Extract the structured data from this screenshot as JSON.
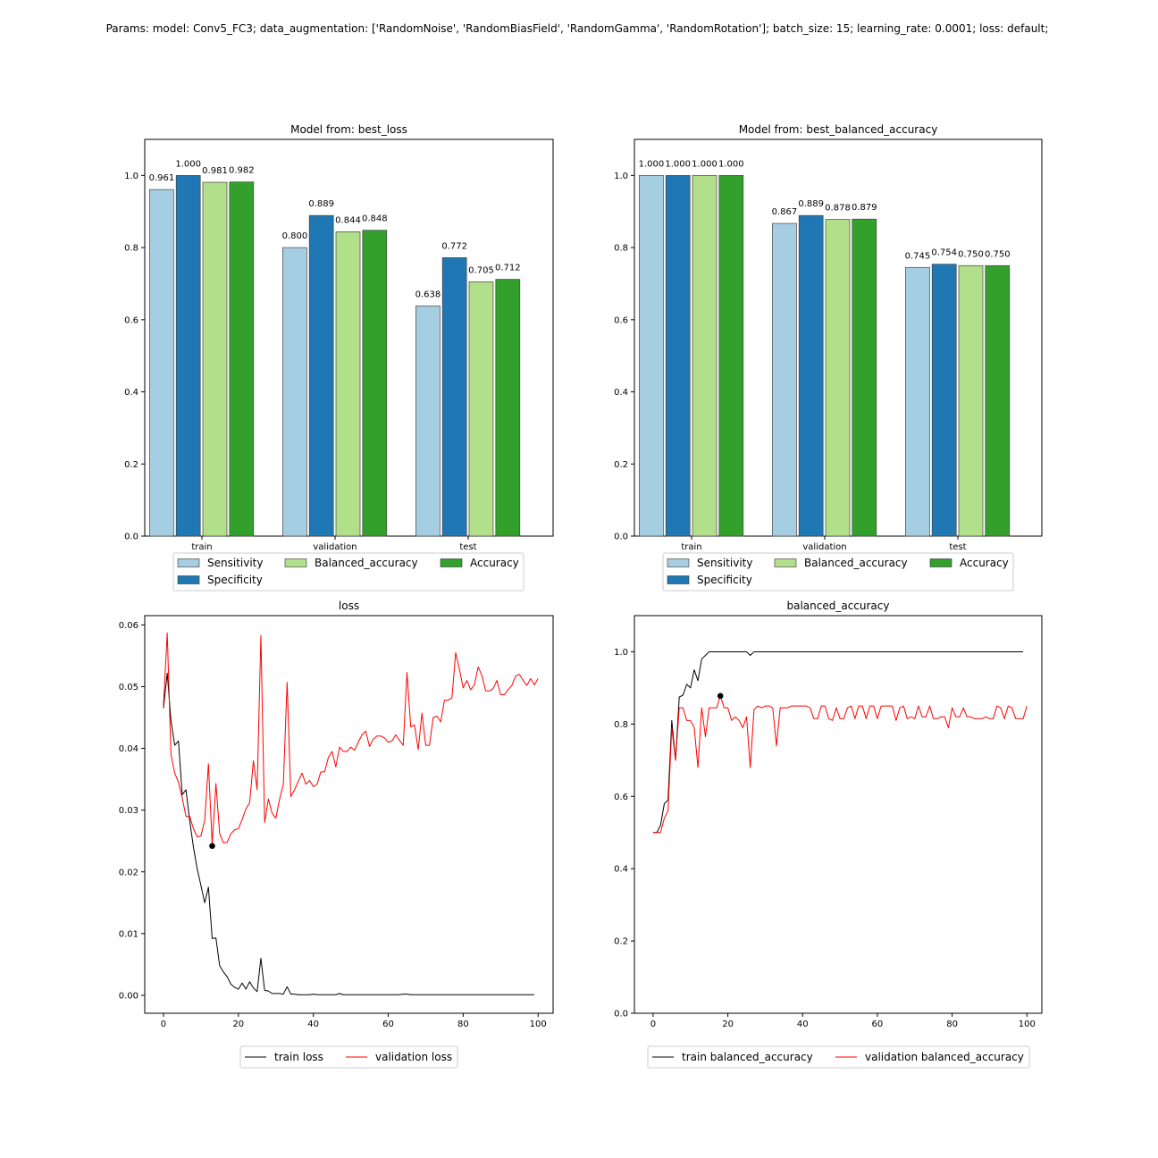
{
  "suptitle": "Params: model: Conv5_FC3; data_augmentation: ['RandomNoise', 'RandomBiasField', 'RandomGamma', 'RandomRotation']; batch_size: 15; learning_rate: 0.0001; loss: default;",
  "chart_data": [
    {
      "type": "bar",
      "title": "Model from: best_loss",
      "categories": [
        "train",
        "validation",
        "test"
      ],
      "ylim": [
        0,
        1.1
      ],
      "yticks": [
        0.0,
        0.2,
        0.4,
        0.6,
        0.8,
        1.0
      ],
      "series": [
        {
          "name": "Sensitivity",
          "color": "#a6cee3",
          "values": [
            0.961,
            0.8,
            0.638
          ]
        },
        {
          "name": "Specificity",
          "color": "#1f78b4",
          "values": [
            1.0,
            0.889,
            0.772
          ]
        },
        {
          "name": "Balanced_accuracy",
          "color": "#b2df8a",
          "values": [
            0.981,
            0.844,
            0.705
          ]
        },
        {
          "name": "Accuracy",
          "color": "#33a02c",
          "values": [
            0.982,
            0.848,
            0.712
          ]
        }
      ],
      "legend": "below"
    },
    {
      "type": "bar",
      "title": "Model from: best_balanced_accuracy",
      "categories": [
        "train",
        "validation",
        "test"
      ],
      "ylim": [
        0,
        1.1
      ],
      "yticks": [
        0.0,
        0.2,
        0.4,
        0.6,
        0.8,
        1.0
      ],
      "series": [
        {
          "name": "Sensitivity",
          "color": "#a6cee3",
          "values": [
            1.0,
            0.867,
            0.745
          ]
        },
        {
          "name": "Specificity",
          "color": "#1f78b4",
          "values": [
            1.0,
            0.889,
            0.754
          ]
        },
        {
          "name": "Balanced_accuracy",
          "color": "#b2df8a",
          "values": [
            1.0,
            0.878,
            0.75
          ]
        },
        {
          "name": "Accuracy",
          "color": "#33a02c",
          "values": [
            1.0,
            0.879,
            0.75
          ]
        }
      ],
      "legend": "below"
    },
    {
      "type": "line",
      "title": "loss",
      "xlim": [
        -5,
        104
      ],
      "ylim": [
        -0.0029,
        0.0615
      ],
      "xticks": [
        0,
        20,
        40,
        60,
        80,
        100
      ],
      "yticks": [
        0.0,
        0.01,
        0.02,
        0.03,
        0.04,
        0.05,
        0.06
      ],
      "ytick_decimals": 2,
      "series": [
        {
          "name": "train loss",
          "color": "#000000",
          "values": [
            0.0465,
            0.0522,
            0.0445,
            0.0405,
            0.0412,
            0.0325,
            0.0333,
            0.0283,
            0.024,
            0.0205,
            0.0178,
            0.015,
            0.0175,
            0.0092,
            0.0093,
            0.0048,
            0.0038,
            0.003,
            0.0018,
            0.0013,
            0.001,
            0.002,
            0.001,
            0.0022,
            0.0012,
            0.0006,
            0.006,
            0.0008,
            0.0007,
            0.0003,
            0.0003,
            0.0003,
            0.0002,
            0.0014,
            0.0002,
            0.0002,
            0.0001,
            0.0001,
            0.0001,
            0.0001,
            0.0002,
            0.0001,
            0.0001,
            0.0001,
            0.0001,
            0.0001,
            0.0001,
            0.0003,
            0.0001,
            0.0001,
            0.0001,
            0.0001,
            0.0001,
            0.0001,
            0.0001,
            0.0001,
            0.0001,
            0.0001,
            0.0001,
            0.0001,
            0.0001,
            0.0001,
            0.0001,
            0.0001,
            0.0002,
            0.0002,
            0.0001,
            0.0001,
            0.0001,
            0.0001,
            0.0001,
            0.0001,
            0.0001,
            0.0001,
            0.0001,
            0.0001,
            0.0001,
            0.0001,
            0.0001,
            0.0001,
            0.0001,
            0.0001,
            0.0001,
            0.0001,
            0.0001,
            0.0001,
            0.0001,
            0.0001,
            0.0001,
            0.0001,
            0.0001,
            0.0001,
            0.0001,
            0.0001,
            0.0001,
            0.0001,
            0.0001,
            0.0001,
            0.0001,
            0.0001
          ]
        },
        {
          "name": "validation loss",
          "color": "#ff0000",
          "values": [
            0.047,
            0.0587,
            0.039,
            0.036,
            0.0345,
            0.032,
            0.029,
            0.029,
            0.027,
            0.0257,
            0.0258,
            0.0283,
            0.0375,
            0.0245,
            0.0343,
            0.0262,
            0.0247,
            0.0248,
            0.0262,
            0.0268,
            0.027,
            0.0285,
            0.0302,
            0.0312,
            0.038,
            0.0333,
            0.0583,
            0.028,
            0.0318,
            0.0295,
            0.0287,
            0.0318,
            0.0342,
            0.0507,
            0.0322,
            0.0333,
            0.0347,
            0.036,
            0.0342,
            0.0348,
            0.0338,
            0.0342,
            0.0362,
            0.0362,
            0.0385,
            0.0395,
            0.037,
            0.0402,
            0.0395,
            0.0395,
            0.0402,
            0.0397,
            0.041,
            0.0422,
            0.0428,
            0.0403,
            0.0415,
            0.042,
            0.042,
            0.0417,
            0.041,
            0.0412,
            0.0422,
            0.0413,
            0.0405,
            0.0523,
            0.0435,
            0.0438,
            0.0398,
            0.0457,
            0.0405,
            0.0405,
            0.045,
            0.0452,
            0.0443,
            0.0478,
            0.0478,
            0.0482,
            0.0555,
            0.0528,
            0.0498,
            0.051,
            0.0495,
            0.0503,
            0.0532,
            0.0518,
            0.0493,
            0.0493,
            0.0497,
            0.051,
            0.0487,
            0.0487,
            0.0495,
            0.0502,
            0.0517,
            0.052,
            0.051,
            0.0502,
            0.0513,
            0.0503,
            0.0513
          ]
        }
      ],
      "marker": {
        "x": 13,
        "y": 0.0242,
        "color": "#000000"
      },
      "legend": "below"
    },
    {
      "type": "line",
      "title": "balanced_accuracy",
      "xlim": [
        -5,
        104
      ],
      "ylim": [
        0,
        1.1
      ],
      "xticks": [
        0,
        20,
        40,
        60,
        80,
        100
      ],
      "yticks": [
        0.0,
        0.2,
        0.4,
        0.6,
        0.8,
        1.0
      ],
      "ytick_decimals": 1,
      "series": [
        {
          "name": "train balanced_accuracy",
          "color": "#000000",
          "values": [
            0.5,
            0.5,
            0.52,
            0.58,
            0.59,
            0.81,
            0.7,
            0.875,
            0.88,
            0.91,
            0.9,
            0.95,
            0.92,
            0.98,
            0.99,
            1.0,
            1.0,
            1.0,
            1.0,
            1.0,
            1.0,
            1.0,
            1.0,
            1.0,
            1.0,
            1.0,
            0.99,
            1.0,
            1.0,
            1.0,
            1.0,
            1.0,
            1.0,
            1.0,
            1.0,
            1.0,
            1.0,
            1.0,
            1.0,
            1.0,
            1.0,
            1.0,
            1.0,
            1.0,
            1.0,
            1.0,
            1.0,
            1.0,
            1.0,
            1.0,
            1.0,
            1.0,
            1.0,
            1.0,
            1.0,
            1.0,
            1.0,
            1.0,
            1.0,
            1.0,
            1.0,
            1.0,
            1.0,
            1.0,
            1.0,
            1.0,
            1.0,
            1.0,
            1.0,
            1.0,
            1.0,
            1.0,
            1.0,
            1.0,
            1.0,
            1.0,
            1.0,
            1.0,
            1.0,
            1.0,
            1.0,
            1.0,
            1.0,
            1.0,
            1.0,
            1.0,
            1.0,
            1.0,
            1.0,
            1.0,
            1.0,
            1.0,
            1.0,
            1.0,
            1.0,
            1.0,
            1.0,
            1.0,
            1.0,
            1.0
          ]
        },
        {
          "name": "validation balanced_accuracy",
          "color": "#ff0000",
          "values": [
            0.5,
            0.5,
            0.5,
            0.54,
            0.56,
            0.79,
            0.7,
            0.845,
            0.845,
            0.81,
            0.81,
            0.79,
            0.68,
            0.845,
            0.765,
            0.845,
            0.845,
            0.845,
            0.878,
            0.845,
            0.845,
            0.81,
            0.82,
            0.81,
            0.79,
            0.82,
            0.68,
            0.84,
            0.85,
            0.845,
            0.85,
            0.85,
            0.845,
            0.74,
            0.845,
            0.845,
            0.845,
            0.85,
            0.85,
            0.85,
            0.85,
            0.85,
            0.845,
            0.815,
            0.815,
            0.85,
            0.85,
            0.815,
            0.81,
            0.845,
            0.815,
            0.815,
            0.845,
            0.85,
            0.815,
            0.85,
            0.85,
            0.815,
            0.85,
            0.85,
            0.815,
            0.85,
            0.85,
            0.85,
            0.85,
            0.81,
            0.845,
            0.85,
            0.815,
            0.82,
            0.815,
            0.85,
            0.82,
            0.82,
            0.85,
            0.815,
            0.815,
            0.82,
            0.82,
            0.79,
            0.845,
            0.82,
            0.82,
            0.845,
            0.82,
            0.82,
            0.815,
            0.815,
            0.815,
            0.82,
            0.815,
            0.815,
            0.85,
            0.845,
            0.815,
            0.85,
            0.845,
            0.815,
            0.815,
            0.815,
            0.85
          ]
        }
      ],
      "marker": {
        "x": 18,
        "y": 0.878,
        "color": "#000000"
      },
      "legend": "below"
    }
  ]
}
